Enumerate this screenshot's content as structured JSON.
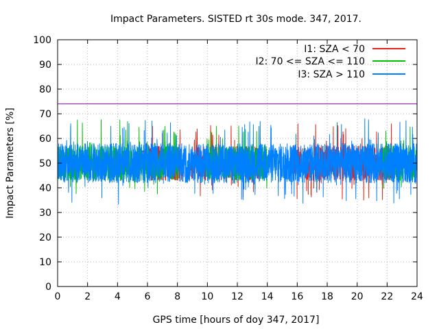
{
  "chart_data": {
    "type": "line",
    "title": "Impact Parameters. SISTED rt 30s mode. 347, 2017.",
    "xlabel": "GPS time [hours of doy 347, 2017]",
    "ylabel": "Impact Parameters [%]",
    "xlim": [
      0,
      24
    ],
    "ylim": [
      0,
      100
    ],
    "xticks": [
      0,
      2,
      4,
      6,
      8,
      10,
      12,
      14,
      16,
      18,
      20,
      22,
      24
    ],
    "xtick_labels": [
      "0",
      "2",
      "4",
      "6",
      "8",
      "10",
      "12",
      "14",
      "16",
      "18",
      "20",
      "22",
      "24"
    ],
    "yticks": [
      0,
      10,
      20,
      30,
      40,
      50,
      60,
      70,
      80,
      90,
      100
    ],
    "ytick_labels": [
      "0",
      "10",
      "20",
      "30",
      "40",
      "50",
      "60",
      "70",
      "80",
      "90",
      "100"
    ],
    "grid": true,
    "legend_position": "top-right",
    "threshold": {
      "value": 74,
      "color": "#9400d3"
    },
    "series": [
      {
        "name": "I1: SZA < 70",
        "color": "#e51e10",
        "segments": [
          [
            5.7,
            8.3
          ],
          [
            8.9,
            9.9
          ],
          [
            10.2,
            13.5
          ],
          [
            15.7,
            22.5
          ]
        ],
        "mean": 50,
        "amplitude": 7,
        "spike_range": [
          35,
          66
        ]
      },
      {
        "name": "I2: 70 <= SZA <= 110",
        "color": "#00c000",
        "segments": [
          [
            0,
            8.1
          ],
          [
            9.9,
            14.0
          ],
          [
            21.7,
            24
          ]
        ],
        "mean": 50,
        "amplitude": 7,
        "spike_range": [
          37,
          68
        ]
      },
      {
        "name": "I3: SZA > 110",
        "color": "#0080ff",
        "segments": [
          [
            0,
            24
          ]
        ],
        "mean": 50,
        "amplitude": 8,
        "spike_range": [
          33,
          68
        ]
      }
    ]
  }
}
